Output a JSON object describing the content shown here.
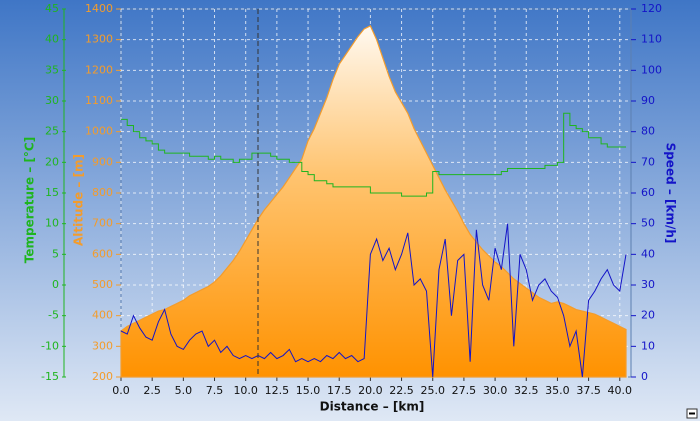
{
  "chart_data": {
    "type": "line",
    "x_label": "Distance – [km]",
    "xlim": [
      0,
      40.9
    ],
    "xticks": [
      {
        "value": 0,
        "label": "0.0"
      },
      2.5,
      {
        "value": 5,
        "label": "5.0"
      },
      7.5,
      {
        "value": 10,
        "label": "10.0"
      },
      12.5,
      {
        "value": 15,
        "label": "15.0"
      },
      17.5,
      {
        "value": 20,
        "label": "20.0"
      },
      22.5,
      {
        "value": 25,
        "label": "25.0"
      },
      27.5,
      {
        "value": 30,
        "label": "30.0"
      },
      32.5,
      {
        "value": 35,
        "label": "35.0"
      },
      37.5,
      {
        "value": 40,
        "label": "40.0"
      }
    ],
    "y_label": "Altitude – [m]",
    "ylim": [
      200,
      1400
    ],
    "yticks": [
      200,
      300,
      400,
      500,
      600,
      700,
      800,
      900,
      1000,
      1100,
      1200,
      1300,
      1400
    ],
    "y2_label": "Speed – [km/h]",
    "y2lim": [
      0,
      120
    ],
    "y2ticks": [
      0,
      10,
      20,
      30,
      40,
      50,
      60,
      70,
      80,
      90,
      100,
      110,
      120
    ],
    "y3_label": "Temperature – [°C]",
    "y3lim": [
      -15,
      45
    ],
    "y3ticks": [
      -15,
      -10,
      -5,
      0,
      5,
      10,
      15,
      20,
      25,
      30,
      35,
      40,
      45
    ],
    "grid": true,
    "x": [
      0,
      0.5,
      1,
      1.5,
      2,
      2.5,
      3,
      3.5,
      4,
      4.5,
      5,
      5.5,
      6,
      6.5,
      7,
      7.5,
      8,
      8.5,
      9,
      9.5,
      10,
      10.5,
      11,
      11.5,
      12,
      12.5,
      13,
      13.5,
      14,
      14.5,
      15,
      15.5,
      16,
      16.5,
      17,
      17.5,
      18,
      18.5,
      19,
      19.5,
      20,
      20.5,
      21,
      21.5,
      22,
      22.5,
      23,
      23.5,
      24,
      24.5,
      25,
      25.5,
      26,
      26.5,
      27,
      27.5,
      28,
      28.5,
      29,
      29.5,
      30,
      30.5,
      31,
      31.5,
      32,
      32.5,
      33,
      33.5,
      34,
      34.5,
      35,
      35.5,
      36,
      36.5,
      37,
      37.5,
      38,
      38.5,
      39,
      39.5,
      40,
      40.5
    ],
    "series": [
      {
        "name": "Altitude",
        "style": "area",
        "axis": "y",
        "color": "#f39c2c",
        "values": [
          350,
          365,
          375,
          385,
          395,
          405,
          415,
          420,
          430,
          440,
          450,
          465,
          475,
          485,
          495,
          510,
          530,
          555,
          580,
          610,
          645,
          680,
          715,
          745,
          770,
          795,
          820,
          850,
          880,
          910,
          970,
          1010,
          1060,
          1110,
          1170,
          1220,
          1250,
          1280,
          1310,
          1335,
          1345,
          1300,
          1240,
          1180,
          1130,
          1095,
          1060,
          1010,
          970,
          930,
          890,
          850,
          810,
          775,
          740,
          700,
          665,
          640,
          615,
          595,
          575,
          560,
          540,
          520,
          505,
          490,
          475,
          460,
          450,
          440,
          445,
          440,
          430,
          420,
          415,
          410,
          405,
          395,
          385,
          375,
          365,
          355
        ]
      },
      {
        "name": "Temperature",
        "style": "step",
        "axis": "y3",
        "color": "#1fb51f",
        "values": [
          27,
          26,
          25,
          24,
          23.5,
          23,
          22,
          21.5,
          21.5,
          21.5,
          21.5,
          21,
          21,
          21,
          20.5,
          21,
          20.5,
          20.5,
          20,
          20.5,
          20.5,
          21.5,
          21.5,
          21.5,
          21,
          20.5,
          20.5,
          20,
          20,
          18.5,
          18,
          17,
          17,
          16.5,
          16,
          16,
          16,
          16,
          16,
          16,
          15,
          15,
          15,
          15,
          15,
          14.5,
          14.5,
          14.5,
          14.5,
          15,
          18.5,
          18,
          18,
          18,
          18,
          18,
          18,
          18,
          18,
          18,
          18,
          18.5,
          19,
          19,
          19,
          19,
          19,
          19,
          19.5,
          19.5,
          20,
          28,
          26,
          25.5,
          25,
          24,
          24,
          23,
          22.5,
          22.5,
          22.5,
          22.5
        ]
      },
      {
        "name": "Speed",
        "style": "line",
        "axis": "y2",
        "color": "#1414c8",
        "values": [
          15,
          14,
          20,
          16,
          13,
          12,
          18,
          22,
          14,
          10,
          9,
          12,
          14,
          15,
          10,
          12,
          8,
          10,
          7,
          6,
          7,
          6,
          7,
          6,
          8,
          6,
          7,
          9,
          5,
          6,
          5,
          6,
          5,
          7,
          6,
          8,
          6,
          7,
          5,
          6,
          40,
          45,
          38,
          42,
          35,
          40,
          47,
          30,
          32,
          28,
          0,
          35,
          45,
          20,
          38,
          40,
          5,
          48,
          30,
          25,
          42,
          35,
          50,
          10,
          40,
          35,
          25,
          30,
          32,
          28,
          26,
          20,
          10,
          15,
          0,
          25,
          28,
          32,
          35,
          30,
          28,
          40
        ]
      }
    ]
  }
}
